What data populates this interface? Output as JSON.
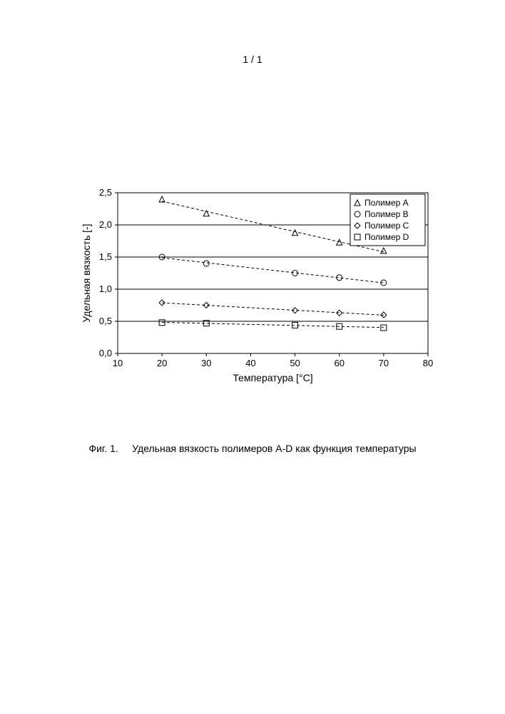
{
  "page_number": "1 / 1",
  "caption_prefix": "Фиг. 1.",
  "caption_text": "Удельная вязкость полимеров A-D как функция температуры",
  "chart": {
    "type": "line-scatter",
    "background_color": "#ffffff",
    "x_axis": {
      "label": "Температура [°C]",
      "min": 10,
      "max": 80,
      "tick_step": 10,
      "label_fontsize": 14,
      "tick_fontsize": 13
    },
    "y_axis": {
      "label": "Удельная вязкость [-]",
      "min": 0.0,
      "max": 2.5,
      "tick_step": 0.5,
      "label_fontsize": 14,
      "tick_fontsize": 13,
      "decimal_separator": ","
    },
    "grid": {
      "horizontal": true,
      "vertical": false,
      "color": "#000000",
      "width": 1
    },
    "border_color": "#000000",
    "series": [
      {
        "name": "Полимер A",
        "marker": "triangle",
        "color": "#000000",
        "line_dash": "4,3",
        "x": [
          20,
          30,
          50,
          60,
          70
        ],
        "y": [
          2.4,
          2.18,
          1.88,
          1.73,
          1.6
        ]
      },
      {
        "name": "Полимер B",
        "marker": "circle",
        "color": "#000000",
        "line_dash": "4,3",
        "x": [
          20,
          30,
          50,
          60,
          70
        ],
        "y": [
          1.5,
          1.4,
          1.25,
          1.18,
          1.1
        ]
      },
      {
        "name": "Полимер C",
        "marker": "diamond",
        "color": "#000000",
        "line_dash": "4,3",
        "x": [
          20,
          30,
          50,
          60,
          70
        ],
        "y": [
          0.79,
          0.75,
          0.67,
          0.63,
          0.6
        ]
      },
      {
        "name": "Полимер D",
        "marker": "square",
        "color": "#000000",
        "line_dash": "4,3",
        "x": [
          20,
          30,
          50,
          60,
          70
        ],
        "y": [
          0.48,
          0.47,
          0.44,
          0.42,
          0.4
        ]
      }
    ],
    "legend": {
      "position": "top-right",
      "border_color": "#000000",
      "background": "#ffffff",
      "fontsize": 12
    },
    "marker_size": 8,
    "line_width": 1
  }
}
